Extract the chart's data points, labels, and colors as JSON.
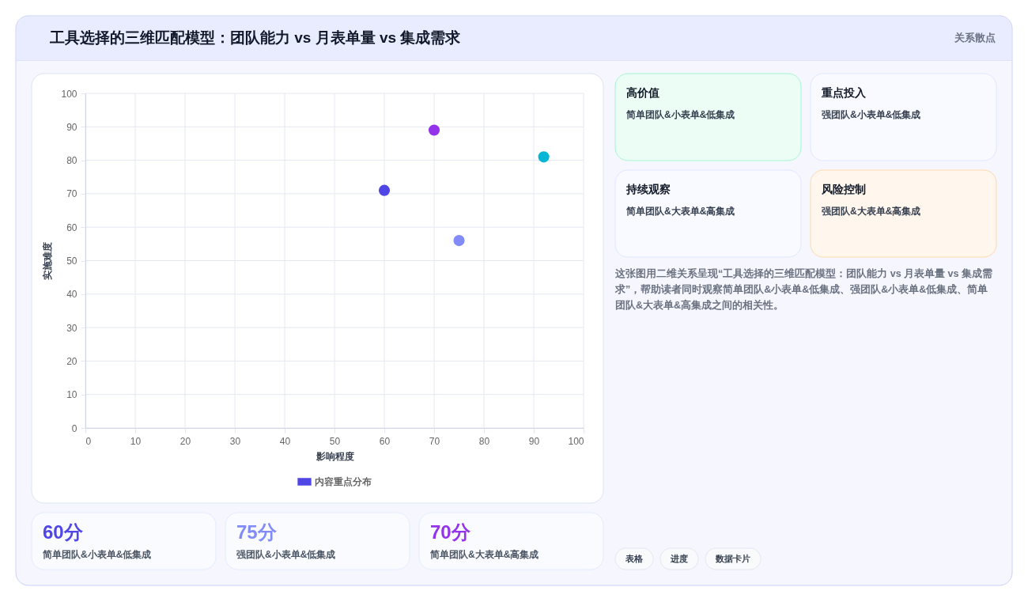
{
  "chart_data": [
    {
      "type": "scatter",
      "title": "工具选择的三维匹配模型：团队能力 vs 月表单量 vs 集成需求",
      "xlabel": "影响程度",
      "ylabel": "实施难度",
      "xlim": [
        0,
        100
      ],
      "ylim": [
        0,
        100
      ],
      "xticks": [
        0,
        10,
        20,
        30,
        40,
        50,
        60,
        70,
        80,
        90,
        100
      ],
      "yticks": [
        0,
        10,
        20,
        30,
        40,
        50,
        60,
        70,
        80,
        90,
        100
      ],
      "grid": true,
      "legend": "bottom",
      "marker": "circle",
      "series": [
        {
          "name": "内容重点分布",
          "color": "#4f46e5",
          "x": [
            60,
            75,
            70,
            92
          ],
          "values": [
            71,
            56,
            89,
            81
          ],
          "colors": [
            "#4f46e5",
            "#818cf8",
            "#9333ea",
            "#06b6d4"
          ]
        }
      ],
      "annotations": [
        "这张图用二维关系呈现“工具选择的三维匹配模型：团队能力 vs 月表单量 vs 集成需求”，帮助读者同时观察简单团队&小表单&低集成、强团队&小表单&低集成、简单团队&大表单&高集成之间的相关性。"
      ]
    },
    {
      "type": "other",
      "subtitle": "关系散点",
      "categories": [
        "高价值",
        "重点投入",
        "持续观察",
        "风险控制"
      ],
      "annotations": [
        "简单团队&小表单&低集成",
        "强团队&小表单&低集成",
        "简单团队&大表单&高集成",
        "强团队&大表单&高集成"
      ],
      "colors": [
        "#ecfdf5",
        "#f8faff",
        "#f8faff",
        "#fff7ed"
      ]
    },
    {
      "type": "other",
      "categories": [
        "简单团队&小表单&低集成",
        "强团队&小表单&低集成",
        "简单团队&大表单&高集成"
      ],
      "series": [
        {
          "values": [
            60,
            75,
            70
          ],
          "value_labels": [
            "60分",
            "75分",
            "70分"
          ]
        }
      ]
    },
    {
      "type": "other",
      "categories": [
        "表格",
        "进度",
        "数据卡片"
      ]
    }
  ]
}
